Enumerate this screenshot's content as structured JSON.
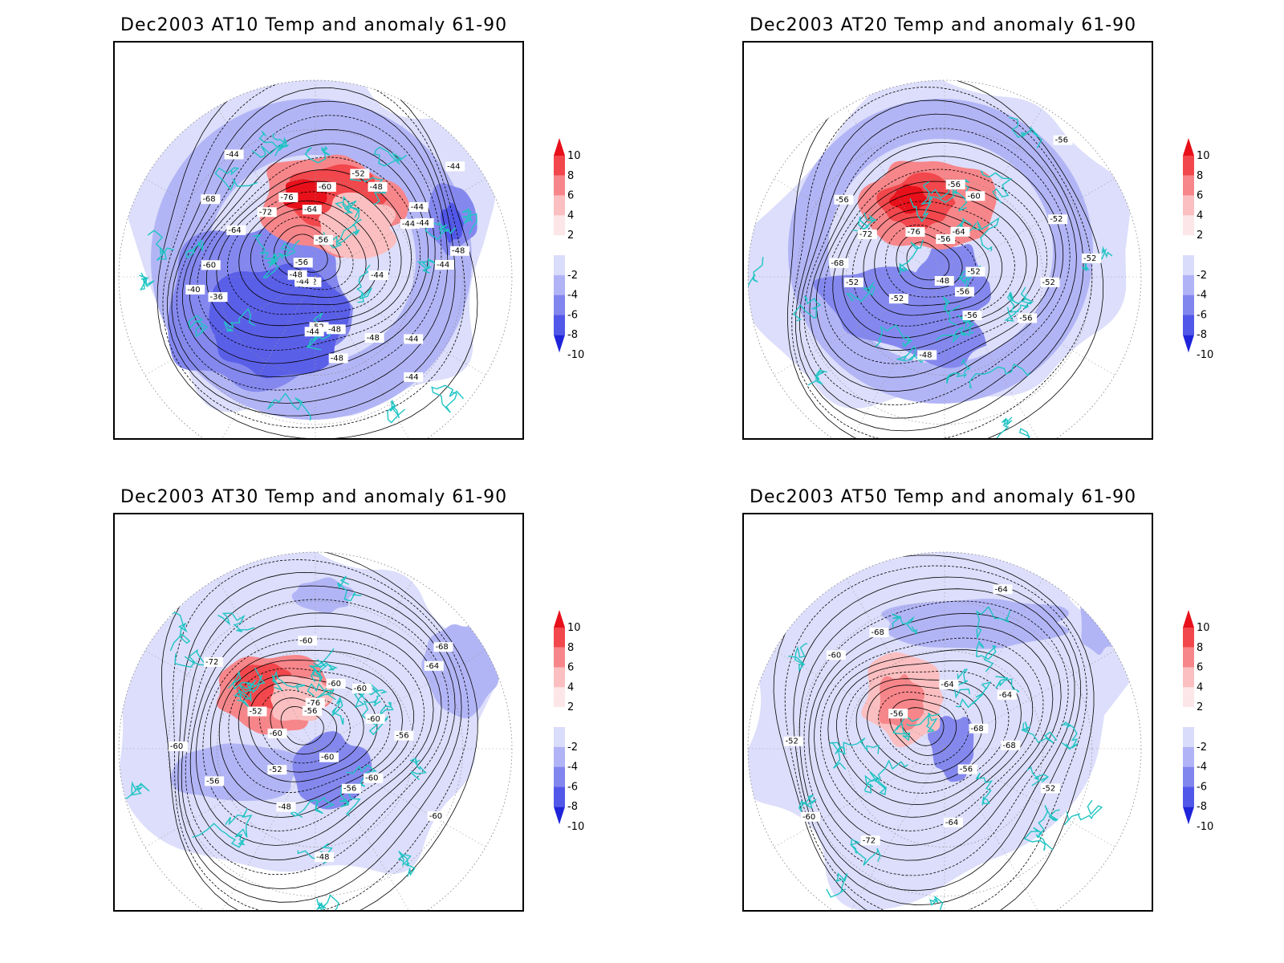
{
  "panels": [
    {
      "title": "Dec2003 AT10 Temp and anomaly 61-90",
      "contour_labels": [
        "-44",
        "-44",
        "-44",
        "-44",
        "-48",
        "-48",
        "-48",
        "-52",
        "-44",
        "-52",
        "-44",
        "-48",
        "-36",
        "-56",
        "-40",
        "-60",
        "-64",
        "-68",
        "-72",
        "-44",
        "-76",
        "-64",
        "-60",
        "-56",
        "-52",
        "-48",
        "-44",
        "-44",
        "-44",
        "-44",
        "-48"
      ]
    },
    {
      "title": "Dec2003 AT20 Temp and anomaly 61-90",
      "contour_labels": [
        "-52",
        "-52",
        "-56",
        "-56",
        "-56",
        "-48",
        "-48",
        "-52",
        "-52",
        "-68",
        "-72",
        "-56",
        "-76",
        "-56",
        "-56",
        "-64",
        "-60",
        "-56",
        "-52",
        "-52"
      ]
    },
    {
      "title": "Dec2003 AT30 Temp and anomaly 61-90",
      "contour_labels": [
        "-56",
        "-60",
        "-60",
        "-56",
        "-60",
        "-48",
        "-48",
        "-52",
        "-56",
        "-60",
        "-60",
        "-52",
        "-72",
        "-56",
        "-76",
        "-60",
        "-60",
        "-60",
        "-68",
        "-64",
        "-60"
      ]
    },
    {
      "title": "Dec2003 AT50 Temp and anomaly 61-90",
      "contour_labels": [
        "-68",
        "-52",
        "-56",
        "-64",
        "-72",
        "-60",
        "-52",
        "-56",
        "-60",
        "-68",
        "-64",
        "-64",
        "-64",
        "-68"
      ]
    }
  ],
  "colorbar": {
    "labels": [
      "10",
      "8",
      "6",
      "4",
      "2",
      "-2",
      "-4",
      "-6",
      "-8",
      "-10"
    ],
    "colors": [
      "#e8101a",
      "#f2474c",
      "#f7868a",
      "#fbbfc1",
      "#fde6e7",
      "#ffffff",
      "#dadcfb",
      "#b0b3f6",
      "#8185ee",
      "#5157e8",
      "#1f24d9"
    ]
  },
  "colors": {
    "coastline": "#20c4c4",
    "contour": "#000000"
  }
}
